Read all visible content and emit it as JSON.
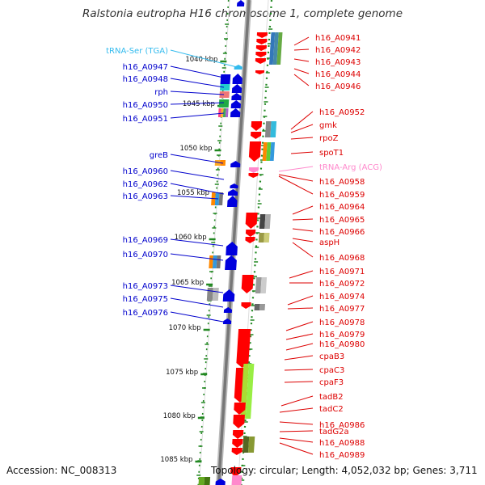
{
  "title": "Ralstonia eutropha H16 chromosome 1, complete genome",
  "accession": "Accession: NC_008313",
  "summary": "Topology: circular; Length: 4,052,032 bp; Genes: 3,711",
  "colors": {
    "forward": "#0000dd",
    "reverse": "#ff0000",
    "trna_forward": "#33bbee",
    "trna_reverse": "#ff88cc",
    "ticks": "#228822",
    "backbone": "#888888"
  },
  "kbp_ticks": [
    "1040 kbp",
    "1045 kbp",
    "1050 kbp",
    "1055 kbp",
    "1060 kbp",
    "1065 kbp",
    "1070 kbp",
    "1075 kbp",
    "1080 kbp",
    "1085 kbp"
  ],
  "left_labels": [
    {
      "text": "tRNA-Ser (TGA)",
      "kind": "trna"
    },
    {
      "text": "h16_A0947",
      "kind": "gene"
    },
    {
      "text": "h16_A0948",
      "kind": "gene"
    },
    {
      "text": "rph",
      "kind": "gene"
    },
    {
      "text": "h16_A0950",
      "kind": "gene"
    },
    {
      "text": "h16_A0951",
      "kind": "gene"
    },
    {
      "text": "greB",
      "kind": "gene"
    },
    {
      "text": "h16_A0960",
      "kind": "gene"
    },
    {
      "text": "h16_A0962",
      "kind": "gene"
    },
    {
      "text": "h16_A0963",
      "kind": "gene"
    },
    {
      "text": "h16_A0969",
      "kind": "gene"
    },
    {
      "text": "h16_A0970",
      "kind": "gene"
    },
    {
      "text": "h16_A0973",
      "kind": "gene"
    },
    {
      "text": "h16_A0975",
      "kind": "gene"
    },
    {
      "text": "h16_A0976",
      "kind": "gene"
    }
  ],
  "right_labels": [
    {
      "text": "h16_A0941",
      "kind": "gene"
    },
    {
      "text": "h16_A0942",
      "kind": "gene"
    },
    {
      "text": "h16_A0943",
      "kind": "gene"
    },
    {
      "text": "h16_A0944",
      "kind": "gene"
    },
    {
      "text": "h16_A0946",
      "kind": "gene"
    },
    {
      "text": "h16_A0952",
      "kind": "gene"
    },
    {
      "text": "gmk",
      "kind": "gene"
    },
    {
      "text": "rpoZ",
      "kind": "gene"
    },
    {
      "text": "spoT1",
      "kind": "gene"
    },
    {
      "text": "tRNA-Arg (ACG)",
      "kind": "trna"
    },
    {
      "text": "h16_A0958",
      "kind": "gene"
    },
    {
      "text": "h16_A0959",
      "kind": "gene"
    },
    {
      "text": "h16_A0964",
      "kind": "gene"
    },
    {
      "text": "h16_A0965",
      "kind": "gene"
    },
    {
      "text": "h16_A0966",
      "kind": "gene"
    },
    {
      "text": "aspH",
      "kind": "gene"
    },
    {
      "text": "h16_A0968",
      "kind": "gene"
    },
    {
      "text": "h16_A0971",
      "kind": "gene"
    },
    {
      "text": "h16_A0972",
      "kind": "gene"
    },
    {
      "text": "h16_A0974",
      "kind": "gene"
    },
    {
      "text": "h16_A0977",
      "kind": "gene"
    },
    {
      "text": "h16_A0978",
      "kind": "gene"
    },
    {
      "text": "h16_A0979",
      "kind": "gene"
    },
    {
      "text": "h16_A0980",
      "kind": "gene"
    },
    {
      "text": "cpaB3",
      "kind": "gene"
    },
    {
      "text": "cpaC3",
      "kind": "gene"
    },
    {
      "text": "cpaF3",
      "kind": "gene"
    },
    {
      "text": "tadB2",
      "kind": "gene"
    },
    {
      "text": "tadC2",
      "kind": "gene"
    },
    {
      "text": "h16_A0986",
      "kind": "gene"
    },
    {
      "text": "tadG2a",
      "kind": "gene"
    },
    {
      "text": "h16_A0988",
      "kind": "gene"
    },
    {
      "text": "h16_A0989",
      "kind": "gene"
    }
  ]
}
